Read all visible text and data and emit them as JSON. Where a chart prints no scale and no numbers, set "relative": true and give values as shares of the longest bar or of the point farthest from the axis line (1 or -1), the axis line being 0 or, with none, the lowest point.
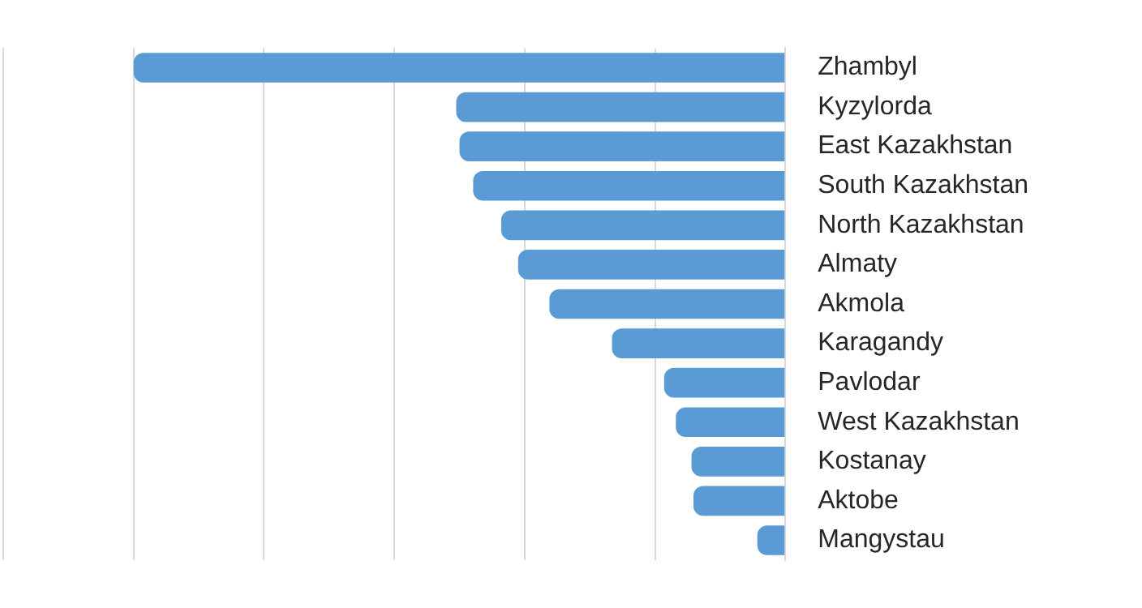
{
  "chart_data": {
    "type": "bar",
    "orientation": "horizontal",
    "relative": true,
    "grid": "x",
    "categories": [
      "Zhambyl",
      "Kyzylorda",
      "East Kazakhstan",
      "South Kazakhstan",
      "North Kazakhstan",
      "Almaty",
      "Akmola",
      "Karagandy",
      "Pavlodar",
      "West Kazakhstan",
      "Kostanay",
      "Aktobe",
      "Mangystau"
    ],
    "values": [
      1,
      0.505,
      0.5,
      0.479,
      0.436,
      0.41,
      0.362,
      0.266,
      0.186,
      0.168,
      0.144,
      0.141,
      0.043
    ],
    "color": "#5b9bd5"
  }
}
